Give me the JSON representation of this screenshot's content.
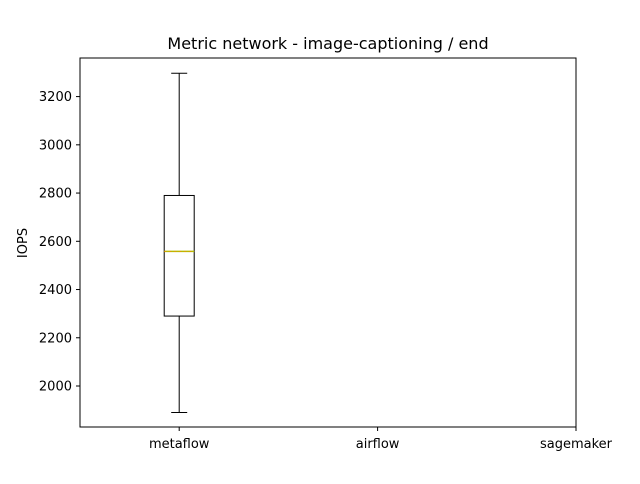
{
  "chart_data": {
    "type": "box",
    "title": "Metric network - image-captioning / end",
    "xlabel": "",
    "ylabel": "IOPS",
    "categories": [
      "metaflow",
      "airflow",
      "sagemaker"
    ],
    "boxes": [
      {
        "category": "metaflow",
        "whisker_low": 1890,
        "q1": 2290,
        "median": 2558,
        "q3": 2790,
        "whisker_high": 3297
      },
      {
        "category": "airflow",
        "whisker_low": null,
        "q1": null,
        "median": null,
        "q3": null,
        "whisker_high": null
      },
      {
        "category": "sagemaker",
        "whisker_low": null,
        "q1": null,
        "median": null,
        "q3": null,
        "whisker_high": null
      }
    ],
    "yticks": [
      2000,
      2200,
      2400,
      2600,
      2800,
      3000,
      3200
    ],
    "ylim": [
      1830,
      3360
    ],
    "grid": false,
    "colors": {
      "box": "#000000",
      "median": "#b5bd00",
      "median_dash": "#ff7f0e",
      "axis": "#000000",
      "background": "#ffffff"
    }
  }
}
